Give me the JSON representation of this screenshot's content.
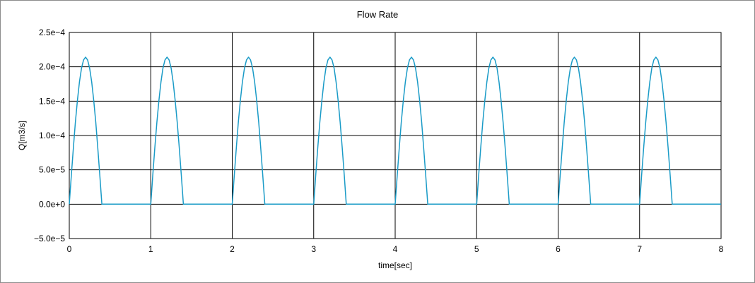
{
  "chart_data": {
    "type": "line",
    "title": "Flow Rate",
    "xlabel": "time[sec]",
    "ylabel": "Q[m3/s]",
    "xlim": [
      0,
      8
    ],
    "ylim": [
      -5e-05,
      0.00025
    ],
    "x_ticks": [
      0,
      1,
      2,
      3,
      4,
      5,
      6,
      7,
      8
    ],
    "x_tick_labels": [
      "0",
      "1",
      "2",
      "3",
      "4",
      "5",
      "6",
      "7",
      "8"
    ],
    "y_ticks": [
      -5e-05,
      0,
      5e-05,
      0.0001,
      0.00015,
      0.0002,
      0.00025
    ],
    "y_tick_labels": [
      "−5.0e−5",
      "0.0e+0",
      "5.0e−5",
      "1.0e−4",
      "1.5e−4",
      "2.0e−4",
      "2.5e−4"
    ],
    "grid": true,
    "line_color": "#1a9bc7",
    "series": [
      {
        "x": [
          0,
          0.025,
          0.05,
          0.075,
          0.1,
          0.125,
          0.15,
          0.175,
          0.2,
          0.225,
          0.25,
          0.275,
          0.3,
          0.325,
          0.35,
          0.375,
          0.4,
          1,
          1,
          1.025,
          1.05,
          1.075,
          1.1,
          1.125,
          1.15,
          1.175,
          1.2,
          1.225,
          1.25,
          1.275,
          1.3,
          1.325,
          1.35,
          1.375,
          1.4,
          2,
          2,
          2.025,
          2.05,
          2.075,
          2.1,
          2.125,
          2.15,
          2.175,
          2.2,
          2.225,
          2.25,
          2.275,
          2.3,
          2.325,
          2.35,
          2.375,
          2.4,
          3,
          3,
          3.025,
          3.05,
          3.075,
          3.1,
          3.125,
          3.15,
          3.175,
          3.2,
          3.225,
          3.25,
          3.275,
          3.3,
          3.325,
          3.35,
          3.375,
          3.4,
          4,
          4,
          4.025,
          4.05,
          4.075,
          4.1,
          4.125,
          4.15,
          4.175,
          4.2,
          4.225,
          4.25,
          4.275,
          4.3,
          4.325,
          4.35,
          4.375,
          4.4,
          5,
          5,
          5.025,
          5.05,
          5.075,
          5.1,
          5.125,
          5.15,
          5.175,
          5.2,
          5.225,
          5.25,
          5.275,
          5.3,
          5.325,
          5.35,
          5.375,
          5.4,
          6,
          6,
          6.025,
          6.05,
          6.075,
          6.1,
          6.125,
          6.15,
          6.175,
          6.2,
          6.225,
          6.25,
          6.275,
          6.3,
          6.325,
          6.35,
          6.375,
          6.4,
          7,
          7,
          7.025,
          7.05,
          7.075,
          7.1,
          7.125,
          7.15,
          7.175,
          7.2,
          7.225,
          7.25,
          7.275,
          7.3,
          7.325,
          7.35,
          7.375,
          7.4,
          8
        ],
        "y": [
          0,
          4.2e-05,
          8.2e-05,
          0.000119,
          0.000151,
          0.000178,
          0.000198,
          0.00021,
          0.000214,
          0.00021,
          0.000198,
          0.000178,
          0.000151,
          0.000119,
          8.2e-05,
          4.2e-05,
          0,
          0,
          0,
          4.2e-05,
          8.2e-05,
          0.000119,
          0.000151,
          0.000178,
          0.000198,
          0.00021,
          0.000214,
          0.00021,
          0.000198,
          0.000178,
          0.000151,
          0.000119,
          8.2e-05,
          4.2e-05,
          0,
          0,
          0,
          4.2e-05,
          8.2e-05,
          0.000119,
          0.000151,
          0.000178,
          0.000198,
          0.00021,
          0.000214,
          0.00021,
          0.000198,
          0.000178,
          0.000151,
          0.000119,
          8.2e-05,
          4.2e-05,
          0,
          0,
          0,
          4.2e-05,
          8.2e-05,
          0.000119,
          0.000151,
          0.000178,
          0.000198,
          0.00021,
          0.000214,
          0.00021,
          0.000198,
          0.000178,
          0.000151,
          0.000119,
          8.2e-05,
          4.2e-05,
          0,
          0,
          0,
          4.2e-05,
          8.2e-05,
          0.000119,
          0.000151,
          0.000178,
          0.000198,
          0.00021,
          0.000214,
          0.00021,
          0.000198,
          0.000178,
          0.000151,
          0.000119,
          8.2e-05,
          4.2e-05,
          0,
          0,
          0,
          4.2e-05,
          8.2e-05,
          0.000119,
          0.000151,
          0.000178,
          0.000198,
          0.00021,
          0.000214,
          0.00021,
          0.000198,
          0.000178,
          0.000151,
          0.000119,
          8.2e-05,
          4.2e-05,
          0,
          0,
          0,
          4.2e-05,
          8.2e-05,
          0.000119,
          0.000151,
          0.000178,
          0.000198,
          0.00021,
          0.000214,
          0.00021,
          0.000198,
          0.000178,
          0.000151,
          0.000119,
          8.2e-05,
          4.2e-05,
          0,
          0,
          0,
          4.2e-05,
          8.2e-05,
          0.000119,
          0.000151,
          0.000178,
          0.000198,
          0.00021,
          0.000214,
          0.00021,
          0.000198,
          0.000178,
          0.000151,
          0.000119,
          8.2e-05,
          4.2e-05,
          0,
          0
        ]
      }
    ]
  }
}
